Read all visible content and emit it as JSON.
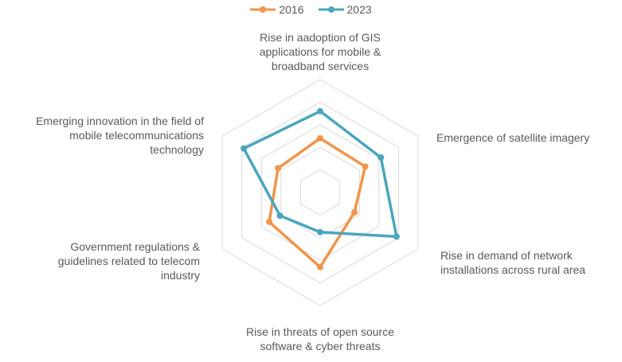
{
  "chart_data": {
    "type": "radar",
    "categories": [
      "Rise in aadoption of GIS applications for mobile & broadband services",
      "Emergence of satellite imagery",
      "Rise in demand of network installations across rural area",
      "Rise in threats of open source software & cyber threats",
      "Government regulations & guidelines related to telecom industry",
      "Emerging innovation in the field of mobile telecommunications technology"
    ],
    "category_lines": [
      [
        "Rise in aadoption of GIS",
        "applications for mobile &",
        "broadband services"
      ],
      [
        "Emergence of satellite imagery"
      ],
      [
        "Rise in demand of network",
        "installations across rural area"
      ],
      [
        "Rise in threats of open source",
        "software & cyber threats"
      ],
      [
        "Government regulations &",
        "guidelines related to telecom",
        "industry"
      ],
      [
        "Emerging innovation in the field of",
        "mobile telecommunications",
        "technology"
      ]
    ],
    "rlim": [
      0,
      5
    ],
    "grid": true,
    "legend_position": "top",
    "series": [
      {
        "name": "2016",
        "color": "#F0954A",
        "values": [
          2.4,
          2.3,
          1.75,
          3.3,
          2.6,
          2.15
        ]
      },
      {
        "name": "2023",
        "color": "#4BA6BC",
        "values": [
          3.6,
          3.1,
          3.9,
          1.75,
          2.05,
          3.9
        ]
      }
    ]
  }
}
